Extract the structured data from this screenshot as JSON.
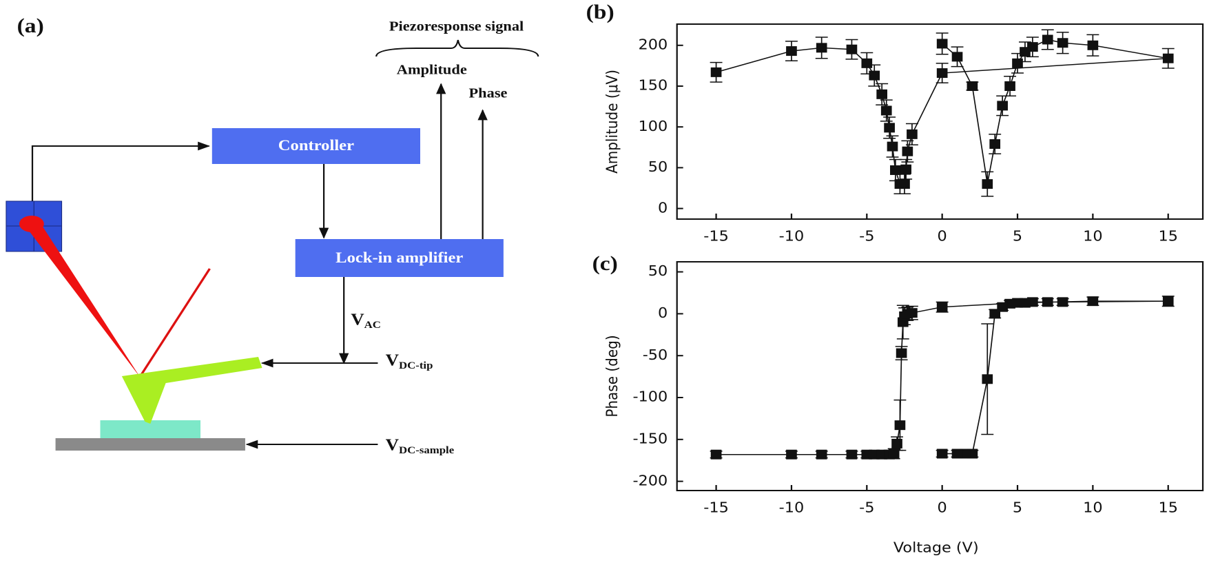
{
  "diagram": {
    "panel_label": "(a)",
    "signal_title": "Piezoresponse signal",
    "amplitude": "Amplitude",
    "phase": "Phase",
    "controller": "Controller",
    "lock_in": "Lock-in amplifier",
    "v_ac": {
      "main": "V",
      "sub": "AC"
    },
    "v_dc_tip": {
      "main": "V",
      "sub": "DC-tip"
    },
    "v_dc_sample": {
      "main": "V",
      "sub": "DC-sample"
    }
  },
  "chart_data": [
    {
      "type": "line",
      "panel_label": "(b)",
      "ylabel": "Amplitude (μV)",
      "color": "#111111",
      "x": [
        -15,
        -10,
        -8,
        -6,
        -5,
        -4.5,
        -4,
        -3.7,
        -3.5,
        -3.3,
        -3.1,
        -2.8,
        -2.5,
        -2.4,
        -2.3,
        -2,
        0,
        15,
        10,
        8,
        7,
        6,
        5.5,
        5,
        4.5,
        4,
        3.5,
        3,
        2,
        1,
        0
      ],
      "values": [
        167,
        193,
        197,
        195,
        178,
        163,
        140,
        120,
        99,
        76,
        47,
        30,
        30,
        48,
        70,
        91,
        166,
        184,
        200,
        203,
        207,
        198,
        192,
        178,
        150,
        126,
        79,
        30,
        150,
        186,
        202
      ],
      "errors": [
        12,
        12,
        13,
        12,
        13,
        13,
        13,
        13,
        13,
        13,
        13,
        12,
        12,
        12,
        13,
        13,
        12,
        12,
        13,
        13,
        12,
        12,
        12,
        12,
        12,
        12,
        12,
        15,
        5,
        12,
        13
      ],
      "xlim": [
        -17.6,
        17.3
      ],
      "ylim": [
        -13,
        226
      ],
      "xticks": [
        -15,
        -10,
        -5,
        0,
        5,
        10,
        15
      ],
      "yticks": [
        0,
        50,
        100,
        150,
        200
      ]
    },
    {
      "type": "line",
      "panel_label": "(c)",
      "ylabel": "Phase (deg)",
      "xlabel": "Voltage (V)",
      "color": "#111111",
      "x": [
        -15,
        -10,
        -8,
        -6,
        -5,
        -4.5,
        -4,
        -3.5,
        -3.2,
        -3,
        -2.8,
        -2.7,
        -2.6,
        -2.5,
        -2.3,
        -2,
        0,
        5,
        10,
        15,
        8,
        7,
        6,
        5.5,
        4.5,
        4,
        3.5,
        3,
        2,
        1.5,
        1,
        0
      ],
      "values": [
        -168,
        -168,
        -168,
        -168,
        -168,
        -168,
        -168,
        -168,
        -167,
        -155,
        -133,
        -47,
        -10,
        -3,
        0,
        1,
        8,
        13,
        15,
        15,
        14,
        14,
        14,
        13,
        12,
        8,
        0,
        -78,
        -167,
        -167,
        -167,
        -167
      ],
      "errors": [
        4,
        4,
        4,
        4,
        4,
        4,
        4,
        5,
        6,
        8,
        30,
        8,
        20,
        10,
        8,
        8,
        6,
        4,
        5,
        6,
        4,
        4,
        4,
        4,
        4,
        4,
        5,
        66,
        4,
        4,
        4,
        4
      ],
      "xlim": [
        -17.6,
        17.3
      ],
      "ylim": [
        -211,
        62
      ],
      "xticks": [
        -15,
        -10,
        -5,
        0,
        5,
        10,
        15
      ],
      "yticks": [
        -200,
        -150,
        -100,
        -50,
        0,
        50
      ]
    }
  ]
}
